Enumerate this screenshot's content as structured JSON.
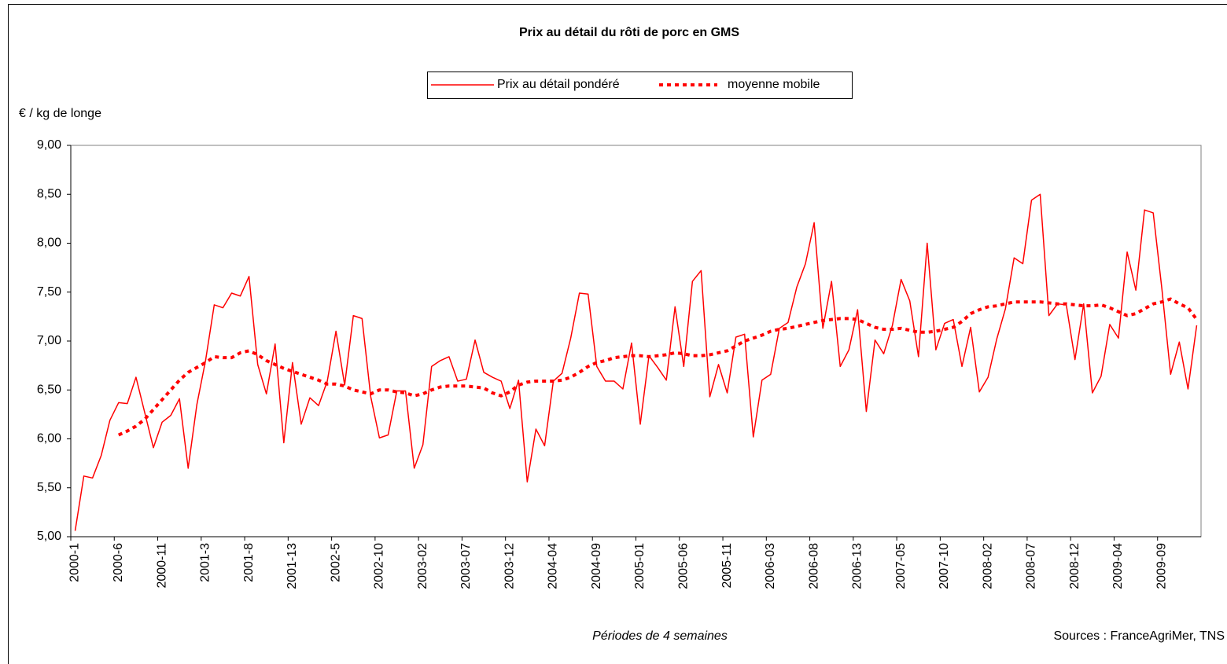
{
  "chart_data": {
    "type": "line",
    "title": "Prix  au détail du rôti de porc en GMS",
    "y_label": "€ / kg de longe",
    "x_label": "Périodes de 4 semaines",
    "source": "Sources : FranceAgriMer, TNS",
    "legend": "top",
    "grid": false,
    "categories": [
      "2000-1",
      null,
      null,
      null,
      null,
      "2000-6",
      null,
      null,
      null,
      null,
      "2000-11",
      null,
      null,
      null,
      null,
      "2001-3",
      null,
      null,
      null,
      null,
      "2001-8",
      null,
      null,
      null,
      null,
      "2001-13",
      null,
      null,
      null,
      null,
      "2002-5",
      null,
      null,
      null,
      null,
      "2002-10",
      null,
      null,
      null,
      null,
      "2003-02",
      null,
      null,
      null,
      null,
      "2003-07",
      null,
      null,
      null,
      null,
      "2003-12",
      null,
      null,
      null,
      null,
      "2004-04",
      null,
      null,
      null,
      null,
      "2004-09",
      null,
      null,
      null,
      null,
      "2005-01",
      null,
      null,
      null,
      null,
      "2005-06",
      null,
      null,
      null,
      null,
      "2005-11",
      null,
      null,
      null,
      null,
      "2006-03",
      null,
      null,
      null,
      null,
      "2006-08",
      null,
      null,
      null,
      null,
      "2006-13",
      null,
      null,
      null,
      null,
      "2007-05",
      null,
      null,
      null,
      null,
      "2007-10",
      null,
      null,
      null,
      null,
      "2008-02",
      null,
      null,
      null,
      null,
      "2008-07",
      null,
      null,
      null,
      null,
      "2008-12",
      null,
      null,
      null,
      null,
      "2009-04",
      null,
      null,
      null,
      null,
      "2009-09",
      null,
      null,
      null,
      null
    ],
    "series": [
      {
        "name": "Prix au détail pondéré",
        "color": "#ff0000",
        "style": "solid",
        "values": [
          5.06,
          5.62,
          5.6,
          5.83,
          6.19,
          6.37,
          6.36,
          6.63,
          6.27,
          5.91,
          6.17,
          6.24,
          6.41,
          5.7,
          6.35,
          6.8,
          7.37,
          7.34,
          7.49,
          7.46,
          7.66,
          6.76,
          6.46,
          6.97,
          5.96,
          6.78,
          6.15,
          6.42,
          6.34,
          6.59,
          7.1,
          6.55,
          7.26,
          7.23,
          6.43,
          6.01,
          6.04,
          6.49,
          6.49,
          5.7,
          5.94,
          6.74,
          6.8,
          6.84,
          6.59,
          6.61,
          7.01,
          6.68,
          6.63,
          6.59,
          6.31,
          6.6,
          5.56,
          6.1,
          5.93,
          6.59,
          6.67,
          7.03,
          7.49,
          7.48,
          6.74,
          6.59,
          6.59,
          6.51,
          6.98,
          6.15,
          6.85,
          6.73,
          6.6,
          7.35,
          6.74,
          7.61,
          7.72,
          6.43,
          6.76,
          6.47,
          7.04,
          7.07,
          6.02,
          6.6,
          6.66,
          7.13,
          7.19,
          7.55,
          7.79,
          8.21,
          7.13,
          7.61,
          6.74,
          6.91,
          7.32,
          6.28,
          7.01,
          6.87,
          7.16,
          7.63,
          7.41,
          6.84,
          8.0,
          6.91,
          7.18,
          7.22,
          6.74,
          7.14,
          6.48,
          6.63,
          7.02,
          7.33,
          7.85,
          7.79,
          8.44,
          8.5,
          7.26,
          7.38,
          7.37,
          6.81,
          7.38,
          6.47,
          6.64,
          7.17,
          7.03,
          7.91,
          7.52,
          8.34,
          8.31,
          7.53,
          6.66,
          6.99,
          6.51,
          7.16
        ]
      },
      {
        "name": "moyenne mobile",
        "color": "#ff0000",
        "style": "dotted",
        "values": [
          null,
          null,
          null,
          null,
          null,
          6.04,
          6.08,
          6.13,
          6.2,
          6.3,
          6.4,
          6.5,
          6.6,
          6.68,
          6.73,
          6.78,
          6.84,
          6.83,
          6.83,
          6.88,
          6.9,
          6.86,
          6.8,
          6.76,
          6.72,
          6.69,
          6.66,
          6.63,
          6.6,
          6.56,
          6.56,
          6.54,
          6.5,
          6.48,
          6.46,
          6.5,
          6.5,
          6.48,
          6.47,
          6.44,
          6.46,
          6.5,
          6.53,
          6.54,
          6.54,
          6.54,
          6.53,
          6.52,
          6.47,
          6.44,
          6.48,
          6.55,
          6.58,
          6.59,
          6.59,
          6.59,
          6.6,
          6.63,
          6.68,
          6.74,
          6.78,
          6.8,
          6.83,
          6.84,
          6.85,
          6.85,
          6.84,
          6.85,
          6.86,
          6.88,
          6.87,
          6.85,
          6.85,
          6.86,
          6.88,
          6.9,
          6.95,
          7.0,
          7.03,
          7.06,
          7.1,
          7.12,
          7.13,
          7.15,
          7.17,
          7.19,
          7.21,
          7.22,
          7.23,
          7.23,
          7.22,
          7.18,
          7.14,
          7.12,
          7.12,
          7.13,
          7.11,
          7.09,
          7.09,
          7.1,
          7.12,
          7.14,
          7.2,
          7.28,
          7.32,
          7.35,
          7.36,
          7.38,
          7.4,
          7.4,
          7.4,
          7.4,
          7.39,
          7.38,
          7.38,
          7.37,
          7.36,
          7.36,
          7.37,
          7.34,
          7.3,
          7.26,
          7.28,
          7.33,
          7.38,
          7.4,
          7.43,
          7.38,
          7.34,
          7.22
        ]
      }
    ],
    "ylim": [
      5,
      9
    ],
    "yticks": [
      {
        "value": 5,
        "label": "5,00"
      },
      {
        "value": 5.5,
        "label": "5,50"
      },
      {
        "value": 6,
        "label": "6,00"
      },
      {
        "value": 6.5,
        "label": "6,50"
      },
      {
        "value": 7,
        "label": "7,00"
      },
      {
        "value": 7.5,
        "label": "7,50"
      },
      {
        "value": 8,
        "label": "8,00"
      },
      {
        "value": 8.5,
        "label": "8,50"
      },
      {
        "value": 9,
        "label": "9,00"
      }
    ]
  }
}
